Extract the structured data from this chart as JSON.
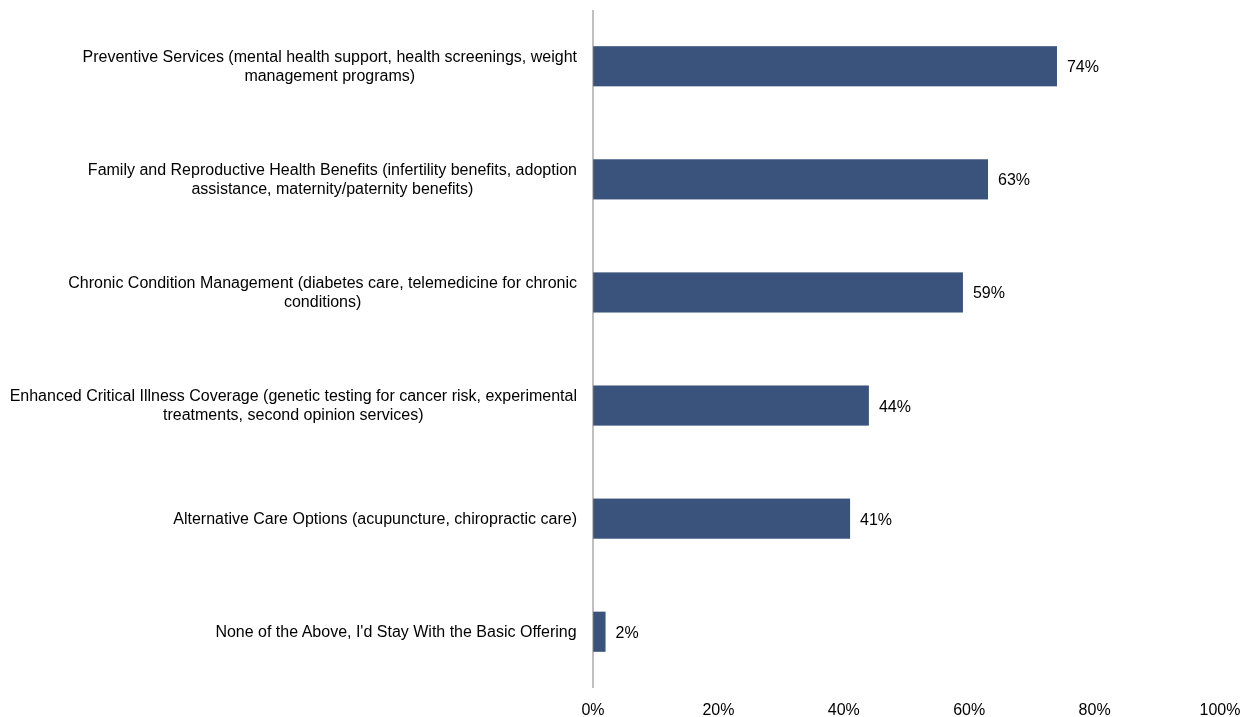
{
  "chart_data": {
    "type": "bar",
    "orientation": "horizontal",
    "categories": [
      "Preventive Services (mental health support, health screenings, weight management programs)",
      "Family and Reproductive Health Benefits (infertility benefits, adoption assistance, maternity/paternity benefits)",
      "Chronic Condition Management (diabetes care, telemedicine for chronic conditions)",
      "Enhanced Critical Illness Coverage (genetic testing for cancer risk, experimental treatments, second opinion services)",
      "Alternative Care Options (acupuncture, chiropractic care)",
      "None of the Above, I'd Stay With the Basic Offering"
    ],
    "values": [
      74,
      63,
      59,
      44,
      41,
      2
    ],
    "value_labels": [
      "74%",
      "63%",
      "59%",
      "44%",
      "41%",
      "2%"
    ],
    "color": "#39537d",
    "xlim": [
      0,
      100
    ],
    "xticks": [
      {
        "value": 0,
        "label": "0%"
      },
      {
        "value": 20,
        "label": "20%"
      },
      {
        "value": 40,
        "label": "40%"
      },
      {
        "value": 60,
        "label": "60%"
      },
      {
        "value": 80,
        "label": "80%"
      },
      {
        "value": 100,
        "label": "100%"
      }
    ],
    "grid": false
  }
}
